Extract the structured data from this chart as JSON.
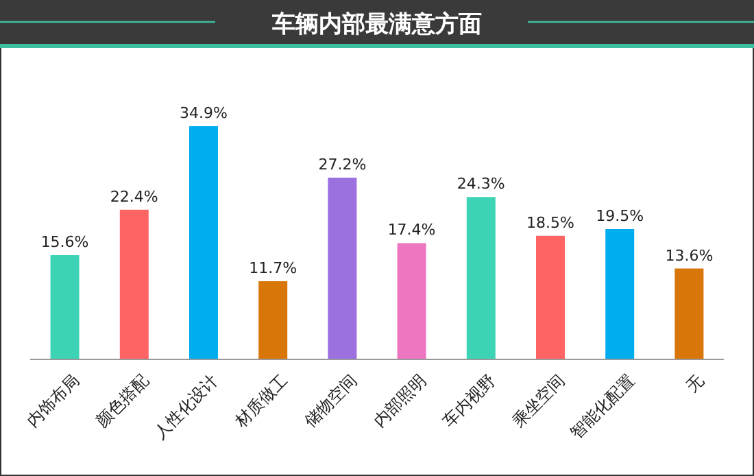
{
  "chart_data": {
    "type": "bar",
    "title": "车辆内部最满意方面",
    "categories": [
      "内饰布局",
      "颜色搭配",
      "人性化设计",
      "材质做工",
      "储物空间",
      "内部照明",
      "车内视野",
      "乘坐空间",
      "智能化配置",
      "无"
    ],
    "values": [
      15.6,
      22.4,
      34.9,
      11.7,
      27.2,
      17.4,
      24.3,
      18.5,
      19.5,
      13.6
    ],
    "value_labels": [
      "15.6%",
      "22.4%",
      "34.9%",
      "11.7%",
      "27.2%",
      "17.4%",
      "24.3%",
      "18.5%",
      "19.5%",
      "13.6%"
    ],
    "colors": [
      "#3cd4b4",
      "#ff6464",
      "#00aeef",
      "#d9760a",
      "#9d70e0",
      "#ee76c0",
      "#3cd4b4",
      "#ff6464",
      "#00aeef",
      "#d9760a"
    ]
  }
}
